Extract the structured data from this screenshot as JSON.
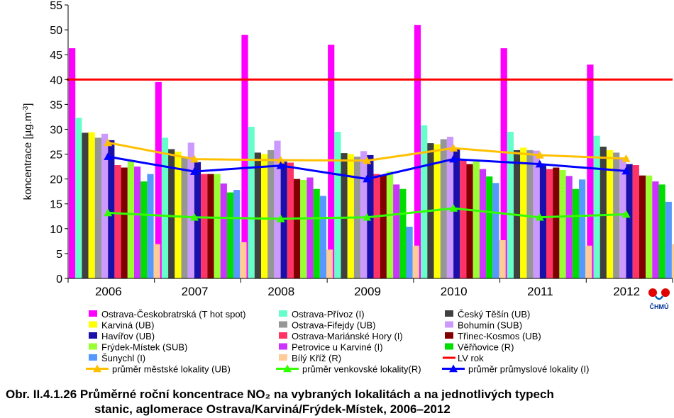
{
  "chart_data": {
    "type": "bar",
    "categories": [
      "2006",
      "2007",
      "2008",
      "2009",
      "2010",
      "2011",
      "2012"
    ],
    "ylabel": "koncentrace [µg.m-3]",
    "ylim": [
      0,
      55
    ],
    "yticks": [
      0,
      5,
      10,
      15,
      20,
      25,
      30,
      35,
      40,
      45,
      50,
      55
    ],
    "grid": false,
    "legend_position": "bottom",
    "series": [
      {
        "name": "Ostrava-Českobratrská (T hot spot)",
        "color": "#ff00ff",
        "values": [
          46.3,
          39.5,
          49.0,
          47.0,
          51.0,
          46.3,
          43.0
        ]
      },
      {
        "name": "Ostrava-Přívoz (I)",
        "color": "#66ffcc",
        "values": [
          32.3,
          28.3,
          30.5,
          29.5,
          30.8,
          29.5,
          28.7
        ]
      },
      {
        "name": "Český Těšín (UB)",
        "color": "#404040",
        "values": [
          29.3,
          26.0,
          25.3,
          25.2,
          27.2,
          25.8,
          26.5
        ]
      },
      {
        "name": "Karviná (UB)",
        "color": "#ffff00",
        "values": [
          29.4,
          25.5,
          25.0,
          25.0,
          27.0,
          26.3,
          25.8
        ]
      },
      {
        "name": "Ostrava-Fifejdy (UB)",
        "color": "#969696",
        "values": [
          28.3,
          24.5,
          25.8,
          24.5,
          28.0,
          25.8,
          25.3
        ]
      },
      {
        "name": "Bohumín (SUB)",
        "color": "#cc99ff",
        "values": [
          29.1,
          27.3,
          27.7,
          25.6,
          28.5,
          25.7,
          24.0
        ]
      },
      {
        "name": "Havířov (UB)",
        "color": "#1a0fa8",
        "values": [
          27.8,
          23.4,
          23.5,
          24.8,
          26.0,
          22.8,
          23.0
        ]
      },
      {
        "name": "Ostrava-Mariánské Hory (I)",
        "color": "#ff3366",
        "values": [
          22.8,
          21.0,
          23.3,
          21.0,
          23.8,
          22.0,
          22.8
        ]
      },
      {
        "name": "Třinec-Kosmos (UB)",
        "color": "#800000",
        "values": [
          22.3,
          21.0,
          20.0,
          20.8,
          23.0,
          22.3,
          20.7
        ]
      },
      {
        "name": "Frýdek-Místek (SUB)",
        "color": "#99ff33",
        "values": [
          23.8,
          21.0,
          19.8,
          21.5,
          23.5,
          21.8,
          20.7
        ]
      },
      {
        "name": "Petrovice u Karviné (I)",
        "color": "#cc33ff",
        "values": [
          22.5,
          19.1,
          20.3,
          18.9,
          22.0,
          20.6,
          19.5
        ]
      },
      {
        "name": "Věřňovice (R)",
        "color": "#00dd00",
        "values": [
          19.5,
          17.3,
          18.0,
          18.0,
          20.5,
          18.0,
          18.9
        ]
      },
      {
        "name": "Šunychl (I)",
        "color": "#5599ff",
        "values": [
          21.0,
          17.8,
          16.6,
          10.4,
          19.2,
          19.9,
          15.4
        ]
      },
      {
        "name": "Bílý Kříž (R)",
        "color": "#ffcc99",
        "values": [
          6.9,
          7.3,
          5.8,
          6.6,
          7.7,
          6.6,
          6.9
        ]
      }
    ],
    "line_series": [
      {
        "name": "LV rok",
        "color": "#ff0000",
        "kind": "hline",
        "value": 40
      },
      {
        "name": "průměr městské lokality (UB)",
        "color": "#ffc000",
        "values": [
          27.3,
          24.0,
          23.8,
          23.7,
          26.2,
          24.8,
          24.1
        ]
      },
      {
        "name": "průměr venkovské lokality(R)",
        "color": "#33ff00",
        "values": [
          13.2,
          12.3,
          12.0,
          12.3,
          14.1,
          12.3,
          12.9
        ]
      },
      {
        "name": "průměr průmyslové lokality (I)",
        "color": "#0000ff",
        "values": [
          24.5,
          21.5,
          22.7,
          20.0,
          24.0,
          23.0,
          21.6
        ]
      }
    ]
  },
  "legend": {
    "col1": [
      {
        "label": "Ostrava-Českobratrská (T hot spot)",
        "color": "#ff00ff",
        "kind": "box"
      },
      {
        "label": "Karviná (UB)",
        "color": "#ffff00",
        "kind": "box"
      },
      {
        "label": "Havířov (UB)",
        "color": "#1a0fa8",
        "kind": "box"
      },
      {
        "label": "Frýdek-Místek (SUB)",
        "color": "#99ff33",
        "kind": "box"
      },
      {
        "label": "Šunychl (I)",
        "color": "#5599ff",
        "kind": "box"
      },
      {
        "label": "průměr městské lokality (UB)",
        "color": "#ffc000",
        "kind": "marker"
      }
    ],
    "col2": [
      {
        "label": "Ostrava-Přívoz (I)",
        "color": "#66ffcc",
        "kind": "box"
      },
      {
        "label": "Ostrava-Fifejdy (UB)",
        "color": "#969696",
        "kind": "box"
      },
      {
        "label": "Ostrava-Mariánské Hory (I)",
        "color": "#ff3366",
        "kind": "box"
      },
      {
        "label": "Petrovice u Karviné (I)",
        "color": "#cc33ff",
        "kind": "box"
      },
      {
        "label": "Bílý Kříž (R)",
        "color": "#ffcc99",
        "kind": "box"
      },
      {
        "label": "průměr venkovské lokality(R)",
        "color": "#33ff00",
        "kind": "marker"
      }
    ],
    "col3": [
      {
        "label": "Český Těšín (UB)",
        "color": "#404040",
        "kind": "box"
      },
      {
        "label": "Bohumín (SUB)",
        "color": "#cc99ff",
        "kind": "box"
      },
      {
        "label": "Třinec-Kosmos (UB)",
        "color": "#800000",
        "kind": "box"
      },
      {
        "label": "Věřňovice (R)",
        "color": "#00dd00",
        "kind": "box"
      },
      {
        "label": "LV rok",
        "color": "#ff0000",
        "kind": "line"
      },
      {
        "label": "průměr průmyslové lokality (I)",
        "color": "#0000ff",
        "kind": "marker"
      }
    ]
  },
  "logo": {
    "text": "ČHMÚ",
    "color_red": "#e00000",
    "color_blue": "#0060b0"
  },
  "caption": {
    "line1": "Obr. II.4.1.26  Průměrné roční koncentrace NO₂ na vybraných lokalitách a na jednotlivých typech",
    "line2": "stanic, aglomerace Ostrava/Karviná/Frýdek-Místek, 2006–2012"
  }
}
